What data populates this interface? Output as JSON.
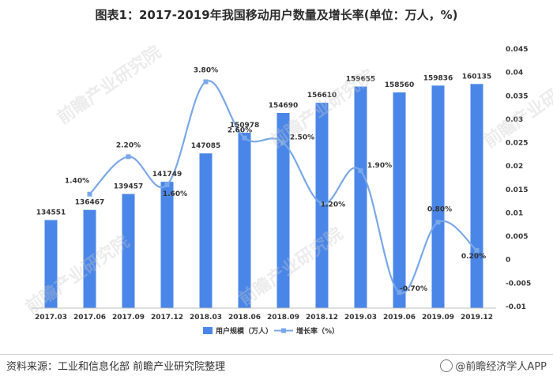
{
  "title": "图表1：2017-2019年我国移动用户数量及增长率(单位：万人，%)",
  "source": "资料来源：工业和信息化部 前瞻产业研究院整理",
  "brand": "@前瞻经济学人APP",
  "watermark": "前瞻产业研究院",
  "colors": {
    "bar": "#4a86e8",
    "line": "#7aa7e8",
    "axis": "#bfbfbf"
  },
  "chart_data": {
    "type": "bar",
    "categories": [
      "2017.03",
      "2017.06",
      "2017.09",
      "2017.12",
      "2018.03",
      "2018.06",
      "2018.09",
      "2018.12",
      "2019.03",
      "2019.06",
      "2019.09",
      "2019.12"
    ],
    "series": [
      {
        "name": "用户规模（万人）",
        "type": "bar",
        "axis": "left",
        "values": [
          134551,
          136467,
          139457,
          141749,
          147085,
          150978,
          154690,
          156610,
          159655,
          158560,
          159836,
          160135
        ]
      },
      {
        "name": "增长率（%）",
        "type": "line",
        "axis": "right",
        "values": [
          null,
          0.014,
          0.022,
          0.016,
          0.038,
          0.026,
          0.025,
          0.012,
          0.019,
          -0.007,
          0.008,
          0.002
        ],
        "labels": [
          "",
          "1.40%",
          "2.20%",
          "1.60%",
          "3.80%",
          "2.60%",
          "2.50%",
          "1.20%",
          "1.90%",
          "-0.70%",
          "0.80%",
          "0.20%"
        ]
      }
    ],
    "y2_ticks": [
      "0.045",
      "0.04",
      "0.035",
      "0.03",
      "0.025",
      "0.02",
      "0.015",
      "0.01",
      "0.005",
      "0",
      "-0.005",
      "-0.01"
    ],
    "y2lim": [
      -0.01,
      0.045
    ],
    "legend_position": "bottom",
    "grid": false
  }
}
